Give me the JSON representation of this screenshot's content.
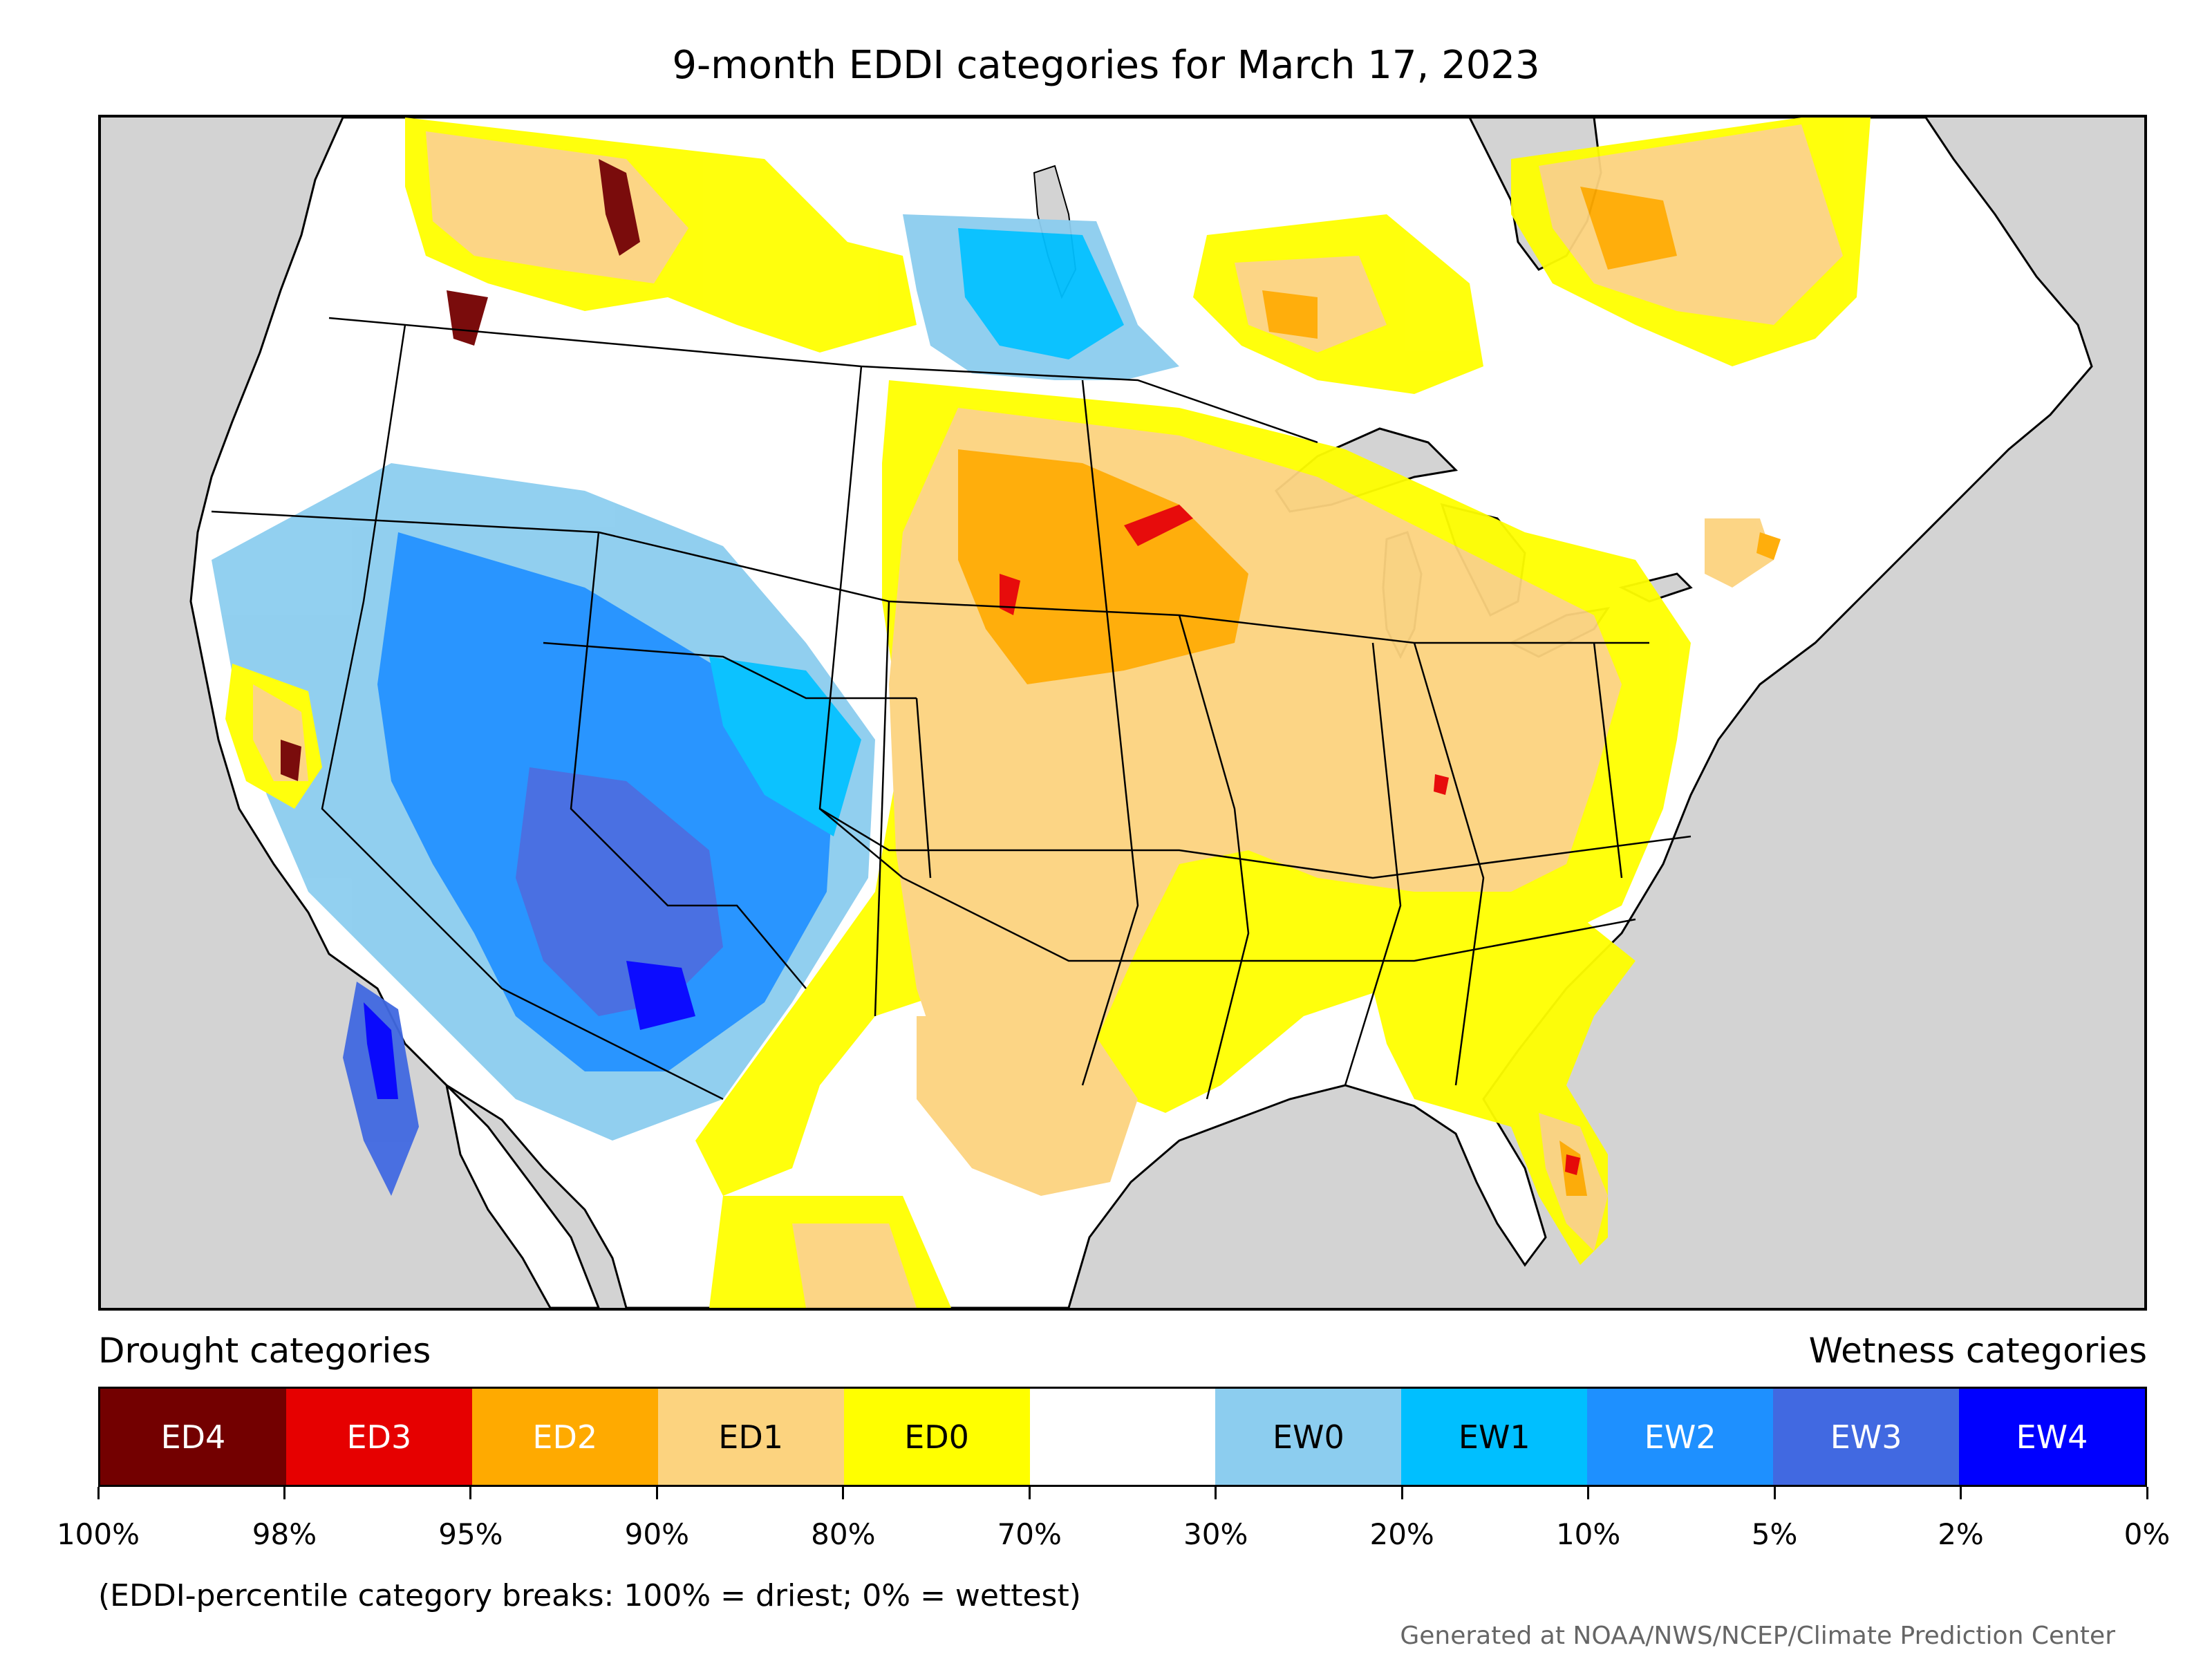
{
  "title": "9-month EDDI categories for March 17, 2023",
  "legend": {
    "left_heading": "Drought categories",
    "right_heading": "Wetness categories",
    "categories": [
      {
        "label": "ED4",
        "color": "#730000",
        "text_color": "#ffffff"
      },
      {
        "label": "ED3",
        "color": "#e60000",
        "text_color": "#ffffff"
      },
      {
        "label": "ED2",
        "color": "#ffaa00",
        "text_color": "#ffffff"
      },
      {
        "label": "ED1",
        "color": "#fcd37f",
        "text_color": "#000000"
      },
      {
        "label": "ED0",
        "color": "#ffff00",
        "text_color": "#000000"
      },
      {
        "label": "",
        "color": "#ffffff",
        "text_color": "#000000"
      },
      {
        "label": "EW0",
        "color": "#8ccdef",
        "text_color": "#000000"
      },
      {
        "label": "EW1",
        "color": "#00bfff",
        "text_color": "#000000"
      },
      {
        "label": "EW2",
        "color": "#1e90ff",
        "text_color": "#ffffff"
      },
      {
        "label": "EW3",
        "color": "#4169e1",
        "text_color": "#ffffff"
      },
      {
        "label": "EW4",
        "color": "#0000ff",
        "text_color": "#ffffff"
      }
    ],
    "breaks": [
      "100%",
      "98%",
      "95%",
      "90%",
      "80%",
      "70%",
      "30%",
      "20%",
      "10%",
      "5%",
      "2%",
      "0%"
    ]
  },
  "note": "(EDDI-percentile category breaks: 100% = driest; 0% = wettest)",
  "credit": "Generated at NOAA/NWS/NCEP/Climate Prediction Center",
  "map": {
    "ocean_color": "#d3d3d3",
    "land_color": "#ffffff",
    "lake_color": "#d3d3d3"
  }
}
